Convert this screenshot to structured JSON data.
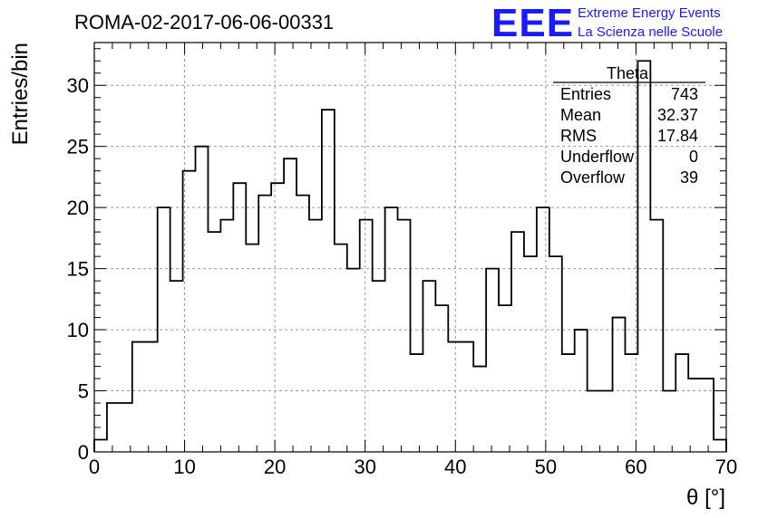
{
  "header": {
    "run_title": "ROMA-02-2017-06-06-00331",
    "logo_mark": "EEE",
    "logo_line1": "Extreme Energy Events",
    "logo_line2": "La Scienza nelle Scuole"
  },
  "stats": {
    "title": "Theta",
    "rows": [
      {
        "label": "Entries",
        "value": "743"
      },
      {
        "label": "Mean",
        "value": "32.37"
      },
      {
        "label": "RMS",
        "value": "17.84"
      },
      {
        "label": "Underflow",
        "value": "0"
      },
      {
        "label": "Overflow",
        "value": "39"
      }
    ]
  },
  "chart_data": {
    "type": "histogram",
    "title": "ROMA-02-2017-06-06-00331",
    "xlabel": "θ [°]",
    "ylabel": "Entries/bin",
    "xlim": [
      0,
      70
    ],
    "ylim": [
      0,
      33.5
    ],
    "x_ticks": [
      0,
      10,
      20,
      30,
      40,
      50,
      60,
      70
    ],
    "y_ticks": [
      0,
      5,
      10,
      15,
      20,
      25,
      30
    ],
    "bin_width": 1.4,
    "bin_edges_start": 0,
    "values": [
      1,
      4,
      4,
      9,
      9,
      20,
      14,
      23,
      25,
      18,
      19,
      22,
      17,
      21,
      22,
      24,
      21,
      19,
      28,
      17,
      15,
      19,
      14,
      20,
      19,
      8,
      14,
      12,
      9,
      9,
      7,
      15,
      12,
      18,
      16,
      20,
      16,
      8,
      10,
      5,
      5,
      11,
      8,
      32,
      19,
      5,
      8,
      6,
      6,
      1
    ],
    "grid": true,
    "line_color": "#000000"
  }
}
